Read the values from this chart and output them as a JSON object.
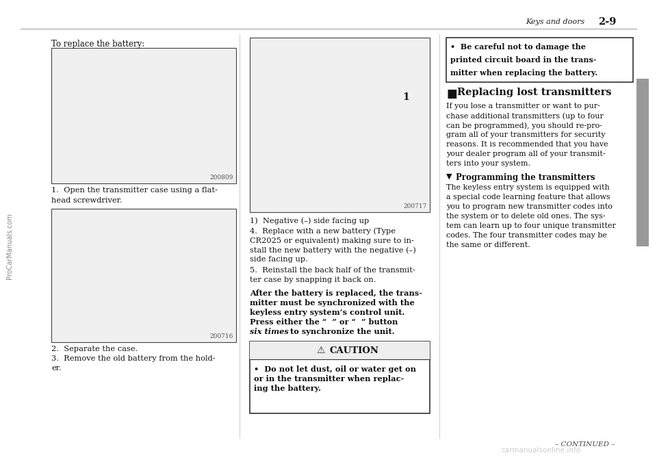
{
  "bg_color": "#ffffff",
  "page_width": 9.6,
  "page_height": 6.78,
  "dpi": 100,
  "header_line_color": "#b0b0b0",
  "header_text_italic": "Keys and doors ",
  "header_page": "2-9",
  "watermark_left": "ProCarManuals.com",
  "watermark_bottom": "carmanualsonline.info",
  "continued_text": "– CONTINUED –",
  "sidebar_color": "#999999",
  "col1_title": "To replace the battery:",
  "img1_label": "200809",
  "img2_label": "200716",
  "img3_label": "200717",
  "img3_sublabel": "1)  Negative (–) side facing up",
  "col1_step1a": "1.  Open the transmitter case using a flat-",
  "col1_step1b": "head screwdriver.",
  "col1_step2a": "2.  Separate the case.",
  "col1_step2b": "3.  Remove the old battery from the hold-",
  "col1_step2c": "er.",
  "col2_step4a": "4.  Replace with a new battery (Type",
  "col2_step4b": "CR2025 or equivalent) making sure to in-",
  "col2_step4c": "stall the new battery with the negative (–)",
  "col2_step4d": "side facing up.",
  "col2_step5a": "5.  Reinstall the back half of the transmit-",
  "col2_step5b": "ter case by snapping it back on.",
  "col2_bold1": "After the battery is replaced, the trans-",
  "col2_bold2": "mitter must be synchronized with the",
  "col2_bold3": "keyless entry system’s control unit.",
  "col2_bold4": "Press either the “  ” or “  ” button",
  "col2_bold5_italic": "six times",
  "col2_bold5_rest": " to synchronize the unit.",
  "caution_title": "CAUTION",
  "caution_line1": "•  Do not let dust, oil or water get on",
  "caution_line2": "or in the transmitter when replac-",
  "caution_line3": "ing the battery.",
  "col3_box_line1": "•  Be careful not to damage the",
  "col3_box_line2": "printed circuit board in the trans-",
  "col3_box_line3": "mitter when replacing the battery.",
  "col3_sec1_title": "Replacing lost transmitters",
  "col3_sec1_p1": "If you lose a transmitter or want to pur-",
  "col3_sec1_p2": "chase additional transmitters (up to four",
  "col3_sec1_p3": "can be programmed), you should re-pro-",
  "col3_sec1_p4": "gram all of your transmitters for security",
  "col3_sec1_p5": "reasons. It is recommended that you have",
  "col3_sec1_p6": "your dealer program all of your transmit-",
  "col3_sec1_p7": "ters into your system.",
  "col3_sec2_title": "Programming the transmitters",
  "col3_sec2_p1": "The keyless entry system is equipped with",
  "col3_sec2_p2": "a special code learning feature that allows",
  "col3_sec2_p3": "you to program new transmitter codes into",
  "col3_sec2_p4": "the system or to delete old ones. The sys-",
  "col3_sec2_p5": "tem can learn up to four unique transmitter",
  "col3_sec2_p6": "codes. The four transmitter codes may be",
  "col3_sec2_p7": "the same or different."
}
